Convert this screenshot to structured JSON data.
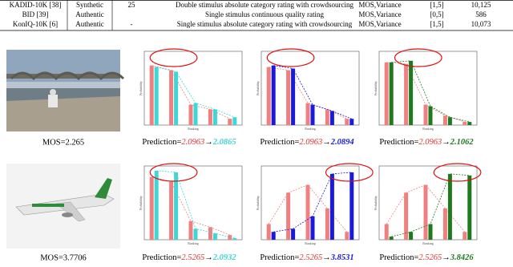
{
  "table": {
    "rows": [
      {
        "dataset": "KADID-10K [38]",
        "kind": "Synthetic",
        "count": "25",
        "protocol": "Double stimulus absolute category rating with crowdsourcing",
        "labels": "MOS,Variance",
        "range": "[1,5]",
        "size": "10,125"
      },
      {
        "dataset": "BID [39]",
        "kind": "Authentic",
        "protocol": "Single stimulus continuous quality rating",
        "labels": "MOS,Variance",
        "range": "[0,5]",
        "size": "586"
      },
      {
        "dataset": "KonIQ-10K [6]",
        "kind": "Authentic",
        "count": "-",
        "protocol": "Single stimulus absolute category rating with crowdsourcing",
        "labels": "MOS,Variance",
        "range": "[1,5]",
        "size": "10,073"
      }
    ]
  },
  "examples": [
    {
      "mos": "MOS=2.265",
      "predictions": [
        {
          "prefix": "Prediction=",
          "before": "2.0963",
          "arrow": "→",
          "after": "2.0865",
          "color": "#3fd6d6"
        },
        {
          "prefix": "Prediction=",
          "before": "2.0963",
          "arrow": "→",
          "after": "2.0894",
          "color": "#1a1adb"
        },
        {
          "prefix": "Prediction=",
          "before": "2.0963",
          "arrow": "→",
          "after": "2.1062",
          "color": "#1f7a1f"
        }
      ],
      "panels": [
        {
          "y_label": "Probability",
          "x_label": "Ranking",
          "ylim": [
            0,
            0.45
          ],
          "series": [
            {
              "color": "#f08080",
              "values": [
                0.38,
                0.35,
                0.13,
                0.1,
                0.04
              ]
            },
            {
              "color": "#3fd6d6",
              "values": [
                0.37,
                0.34,
                0.14,
                0.1,
                0.05
              ]
            }
          ]
        },
        {
          "y_label": "Probability",
          "x_label": "Ranking",
          "ylim": [
            0,
            0.45
          ],
          "series": [
            {
              "color": "#f08080",
              "values": [
                0.37,
                0.35,
                0.14,
                0.1,
                0.04
              ]
            },
            {
              "color": "#1a1adb",
              "values": [
                0.38,
                0.36,
                0.13,
                0.09,
                0.04
              ]
            }
          ]
        },
        {
          "y_label": "Probability",
          "x_label": "Ranking",
          "ylim": [
            0,
            0.45
          ],
          "series": [
            {
              "color": "#f08080",
              "values": [
                0.4,
                0.39,
                0.13,
                0.06,
                0.02
              ]
            },
            {
              "color": "#1f7a1f",
              "values": [
                0.4,
                0.41,
                0.12,
                0.05,
                0.02
              ]
            }
          ]
        }
      ]
    },
    {
      "mos": "MOS=3.7706",
      "predictions": [
        {
          "prefix": "Prediction=",
          "before": "2.5265",
          "arrow": "→",
          "after": "2.0932",
          "color": "#3fd6d6"
        },
        {
          "prefix": "Prediction=",
          "before": "2.5265",
          "arrow": "→",
          "after": "3.8531",
          "color": "#1a1adb"
        },
        {
          "prefix": "Prediction=",
          "before": "2.5265",
          "arrow": "→",
          "after": "3.8426",
          "color": "#1f7a1f"
        }
      ],
      "panels": [
        {
          "y_label": "Probability",
          "x_label": "Ranking",
          "ylim": [
            0,
            0.45
          ],
          "series": [
            {
              "color": "#f08080",
              "values": [
                0.4,
                0.37,
                0.12,
                0.08,
                0.03
              ]
            },
            {
              "color": "#3fd6d6",
              "values": [
                0.44,
                0.43,
                0.07,
                0.04,
                0.01
              ]
            }
          ]
        },
        {
          "y_label": "Probability",
          "x_label": "Ranking",
          "ylim": [
            0,
            0.45
          ],
          "series": [
            {
              "color": "#f08080",
              "values": [
                0.1,
                0.3,
                0.35,
                0.2,
                0.05
              ]
            },
            {
              "color": "#1a1adb",
              "values": [
                0.05,
                0.07,
                0.15,
                0.42,
                0.43
              ]
            }
          ]
        },
        {
          "y_label": "Probability",
          "x_label": "Ranking",
          "ylim": [
            0,
            0.45
          ],
          "series": [
            {
              "color": "#f08080",
              "values": [
                0.1,
                0.3,
                0.35,
                0.2,
                0.05
              ]
            },
            {
              "color": "#1f7a1f",
              "values": [
                0.02,
                0.05,
                0.1,
                0.42,
                0.41
              ]
            }
          ]
        }
      ]
    }
  ]
}
